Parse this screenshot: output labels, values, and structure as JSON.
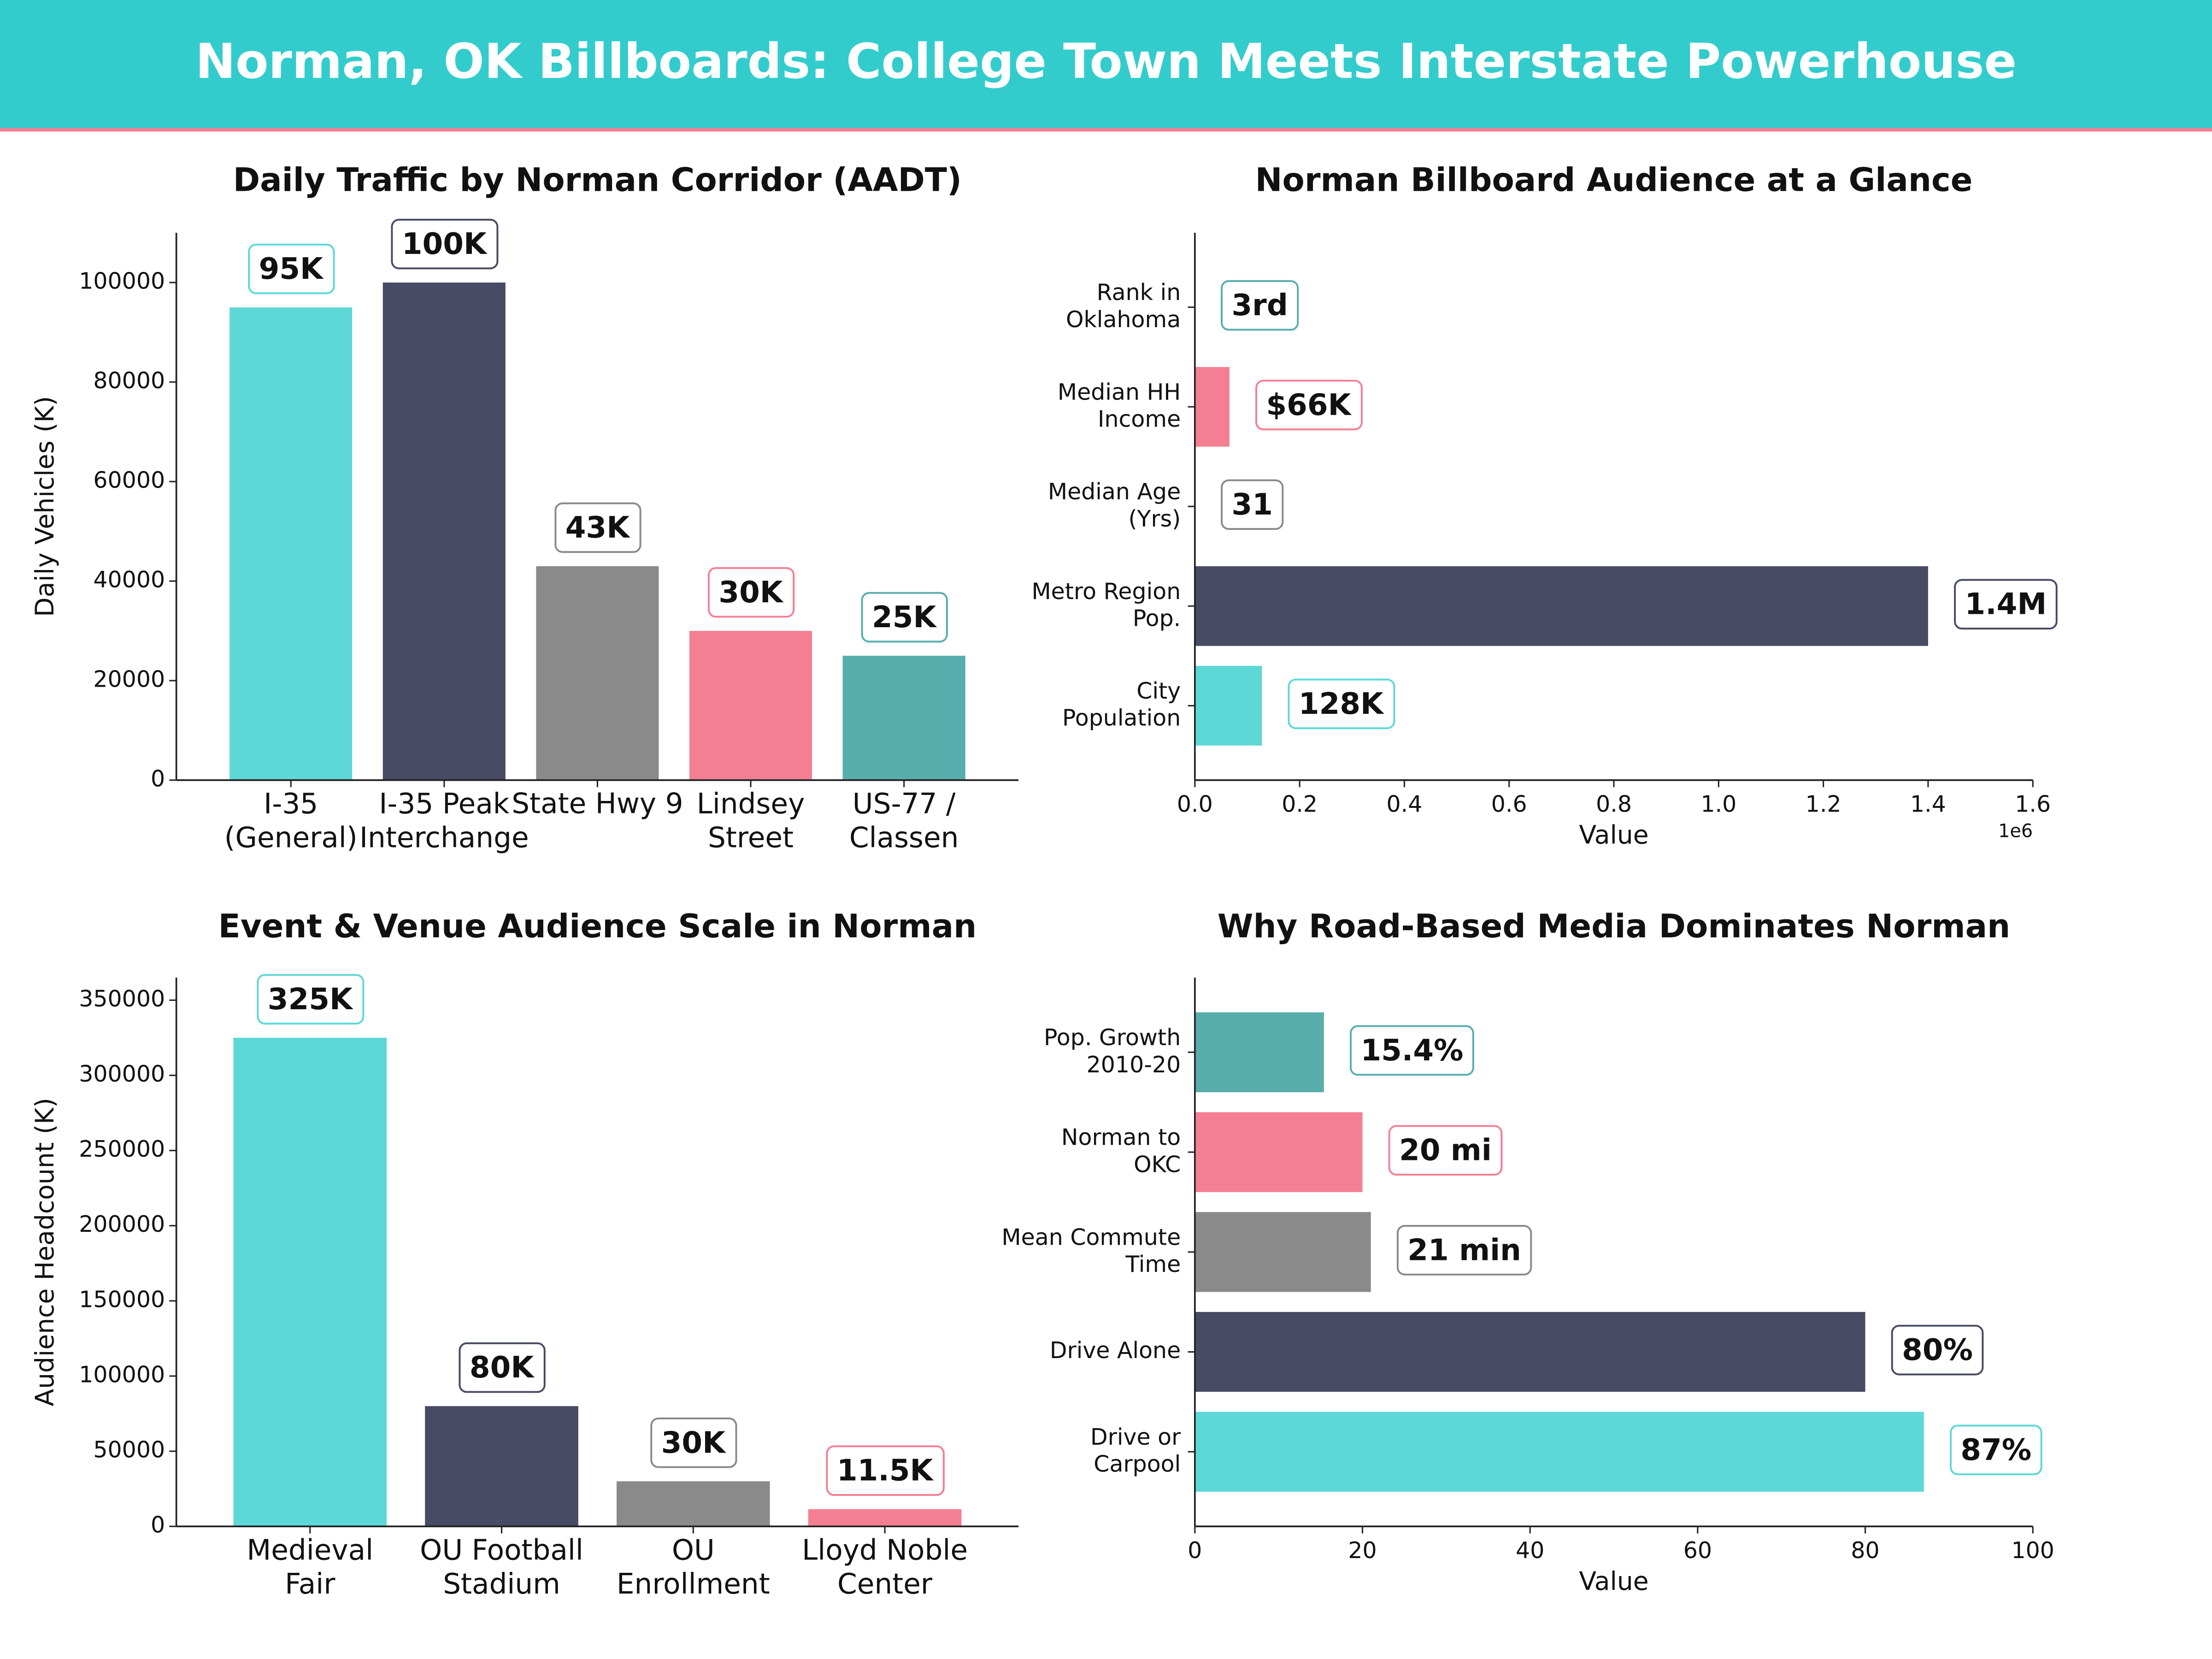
{
  "title": "Norman, OK Billboards: College Town Meets Interstate Powerhouse",
  "chart_data": [
    {
      "type": "bar",
      "title": "Daily Traffic by Norman Corridor (AADT)",
      "ylabel": "Daily Vehicles (K)",
      "categories": [
        "I-35\n(General)",
        "I-35 Peak\nInterchange",
        "State Hwy 9",
        "Lindsey\nStreet",
        "US-77 /\nClassen"
      ],
      "values": [
        95000,
        100000,
        43000,
        30000,
        25000
      ],
      "value_labels": [
        "95K",
        "100K",
        "43K",
        "30K",
        "25K"
      ],
      "colors": [
        "#5dd8d6",
        "#474b63",
        "#8a8a8a",
        "#f47f93",
        "#58adad"
      ],
      "ylim": [
        0,
        110000
      ],
      "yticks": [
        0,
        20000,
        40000,
        60000,
        80000,
        100000
      ],
      "grid": false
    },
    {
      "type": "barh",
      "title": "Norman Billboard Audience at a Glance",
      "xlabel": "Value",
      "x_offset_label": "1e6",
      "categories": [
        "City\nPopulation",
        "Metro Region\nPop.",
        "Median Age\n(Yrs)",
        "Median HH\nIncome",
        "Rank in\nOklahoma"
      ],
      "values": [
        128000,
        1400000,
        31,
        66000,
        3
      ],
      "value_labels": [
        "128K",
        "1.4M",
        "31",
        "$66K",
        "3rd"
      ],
      "colors": [
        "#5dd8d6",
        "#474b63",
        "#8a8a8a",
        "#f47f93",
        "#58adad"
      ],
      "xlim": [
        0,
        1600000
      ],
      "xticks": [
        {
          "value": 0,
          "label": "0.0"
        },
        {
          "value": 200000,
          "label": "0.2"
        },
        {
          "value": 400000,
          "label": "0.4"
        },
        {
          "value": 600000,
          "label": "0.6"
        },
        {
          "value": 800000,
          "label": "0.8"
        },
        {
          "value": 1000000,
          "label": "1.0"
        },
        {
          "value": 1200000,
          "label": "1.2"
        },
        {
          "value": 1400000,
          "label": "1.4"
        },
        {
          "value": 1600000,
          "label": "1.6"
        }
      ],
      "grid": false
    },
    {
      "type": "bar",
      "title": "Event & Venue Audience Scale in Norman",
      "ylabel": "Audience Headcount (K)",
      "categories": [
        "Medieval\nFair",
        "OU Football\nStadium",
        "OU\nEnrollment",
        "Lloyd Noble\nCenter"
      ],
      "values": [
        325000,
        80000,
        30000,
        11500
      ],
      "value_labels": [
        "325K",
        "80K",
        "30K",
        "11.5K"
      ],
      "colors": [
        "#5dd8d6",
        "#474b63",
        "#8a8a8a",
        "#f47f93"
      ],
      "ylim": [
        0,
        365000
      ],
      "yticks": [
        0,
        50000,
        100000,
        150000,
        200000,
        250000,
        300000,
        350000
      ],
      "grid": false
    },
    {
      "type": "barh",
      "title": "Why Road-Based Media Dominates Norman",
      "xlabel": "Value",
      "categories": [
        "Drive or\nCarpool",
        "Drive Alone",
        "Mean Commute\nTime",
        "Norman to\nOKC",
        "Pop. Growth\n2010-20"
      ],
      "values": [
        87,
        80,
        21,
        20,
        15.4
      ],
      "value_labels": [
        "87%",
        "80%",
        "21 min",
        "20 mi",
        "15.4%"
      ],
      "colors": [
        "#5dd8d6",
        "#474b63",
        "#8a8a8a",
        "#f47f93",
        "#58adad"
      ],
      "xlim": [
        0,
        100
      ],
      "xticks": [
        0,
        20,
        40,
        60,
        80,
        100
      ],
      "grid": false
    }
  ]
}
